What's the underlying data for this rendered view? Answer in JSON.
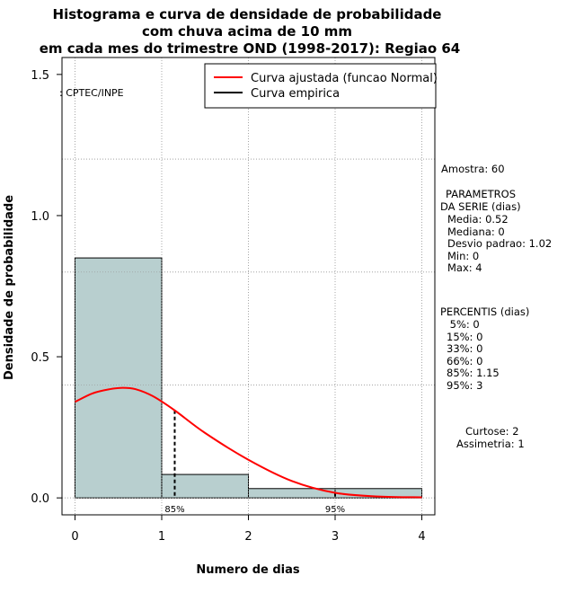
{
  "chart_data": {
    "type": "bar",
    "title_lines": [
      "Histograma e curva de densidade de probabilidade",
      "com chuva acima de 10 mm",
      "em cada mes do trimestre OND (1998-2017): Regiao 64"
    ],
    "xlabel": "Numero de dias",
    "ylabel": "Densidade de probabilidade",
    "xlim": [
      -0.15,
      4.15
    ],
    "ylim": [
      -0.06,
      1.56
    ],
    "x_ticks": [
      0,
      1,
      2,
      3,
      4
    ],
    "y_ticks": [
      0.0,
      0.5,
      1.0,
      1.5
    ],
    "y_tick_labels": [
      "0.0",
      "0.5",
      "1.0",
      "1.5"
    ],
    "grid_y": [
      0.0,
      0.4,
      0.8,
      1.2
    ],
    "grid_x": [
      0,
      1,
      2,
      3,
      4
    ],
    "histogram": {
      "bins": [
        [
          0,
          1
        ],
        [
          1,
          2
        ],
        [
          2,
          3
        ],
        [
          3,
          4
        ]
      ],
      "density": [
        0.85,
        0.083,
        0.033,
        0.033
      ],
      "fill": "#b8cfcf"
    },
    "fitted_curve": {
      "name": "Curva ajustada (funcao Normal)",
      "color": "#ff0000",
      "x": [
        0,
        0.2,
        0.4,
        0.55,
        0.7,
        0.9,
        1.15,
        1.5,
        2.0,
        2.5,
        3.0,
        3.5,
        4.0
      ],
      "y": [
        0.34,
        0.37,
        0.385,
        0.39,
        0.385,
        0.36,
        0.31,
        0.23,
        0.135,
        0.06,
        0.018,
        0.005,
        0.002
      ]
    },
    "empirical_curve": {
      "name": "Curva empirica",
      "color": "#000000"
    },
    "percentile_markers": [
      {
        "label": "85%",
        "x": 1.15,
        "y": 0.31
      },
      {
        "label": "95%",
        "x": 3.0,
        "y": 0.018
      }
    ],
    "watermark": ": CPTEC/INPE",
    "legend_position": "top-right"
  },
  "stats_panel": {
    "amostra": "Amostra: 60",
    "parametros_title": "PARAMETROS",
    "parametros_sub": "DA SERIE (dias)",
    "params": [
      "Media: 0.52",
      "Mediana: 0",
      "Desvio padrao: 1.02",
      "Min: 0",
      "Max: 4"
    ],
    "percentis_title": "PERCENTIS (dias)",
    "percentis": [
      " 5%: 0",
      "15%: 0",
      "33%: 0",
      "66%: 0",
      "85%: 1.15",
      "95%: 3"
    ],
    "curtose": "Curtose: 2",
    "assimetria": "Assimetria: 1"
  }
}
